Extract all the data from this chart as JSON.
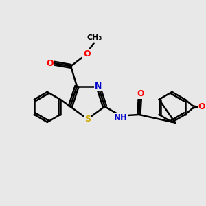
{
  "bg_color": "#e8e8e8",
  "atom_colors": {
    "C": "#000000",
    "N": "#0000cc",
    "O": "#ff0000",
    "S": "#ccaa00",
    "H": "#000000"
  },
  "bond_color": "#000000",
  "bond_width": 1.8,
  "figsize": [
    3.0,
    3.0
  ],
  "dpi": 100,
  "xlim": [
    0,
    10
  ],
  "ylim": [
    0,
    10
  ]
}
